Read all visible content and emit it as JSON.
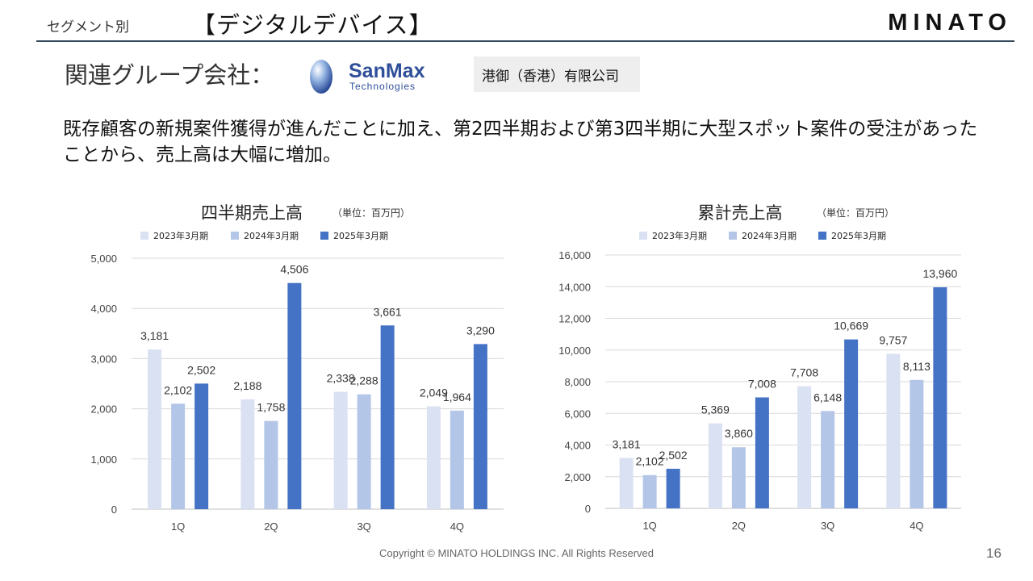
{
  "header": {
    "segment": "セグメント別",
    "title": "【デジタルデバイス】",
    "logo": "MINATO"
  },
  "group": {
    "label": "関連グループ会社：",
    "brand_name": "SanMax",
    "brand_sub": "Technologies",
    "company": "港御（香港）有限公司"
  },
  "description": "既存顧客の新規案件獲得が進んだことに加え、第2四半期および第3四半期に大型スポット案件の受注があったことから、売上高は大幅に増加。",
  "colors": {
    "fy2023": "#dae1f3",
    "fy2024": "#b4c6e7",
    "fy2025": "#4472c4",
    "brand": "#2f4f9a"
  },
  "chart_data": [
    {
      "type": "bar",
      "title": "四半期売上高",
      "unit": "（単位：百万円）",
      "categories": [
        "1Q",
        "2Q",
        "3Q",
        "4Q"
      ],
      "series": [
        {
          "name": "2023年3月期",
          "values": [
            3181,
            2188,
            2338,
            2049
          ]
        },
        {
          "name": "2024年3月期",
          "values": [
            2102,
            1758,
            2288,
            1964
          ]
        },
        {
          "name": "2025年3月期",
          "values": [
            2502,
            4506,
            3661,
            3290
          ]
        }
      ],
      "ylim": [
        0,
        5000
      ],
      "yticks": [
        0,
        1000,
        2000,
        3000,
        4000,
        5000
      ],
      "grid": true,
      "legend": "top"
    },
    {
      "type": "bar",
      "title": "累計売上高",
      "unit": "（単位：百万円）",
      "categories": [
        "1Q",
        "2Q",
        "3Q",
        "4Q"
      ],
      "series": [
        {
          "name": "2023年3月期",
          "values": [
            3181,
            5369,
            7708,
            9757
          ]
        },
        {
          "name": "2024年3月期",
          "values": [
            2102,
            3860,
            6148,
            8113
          ]
        },
        {
          "name": "2025年3月期",
          "values": [
            2502,
            7008,
            10669,
            13960
          ]
        }
      ],
      "ylim": [
        0,
        16000
      ],
      "yticks": [
        0,
        2000,
        4000,
        6000,
        8000,
        10000,
        12000,
        14000,
        16000
      ],
      "grid": true,
      "legend": "top"
    }
  ],
  "footer": {
    "copyright": "Copyright © MINATO HOLDINGS INC. All Rights Reserved",
    "page": "16"
  }
}
